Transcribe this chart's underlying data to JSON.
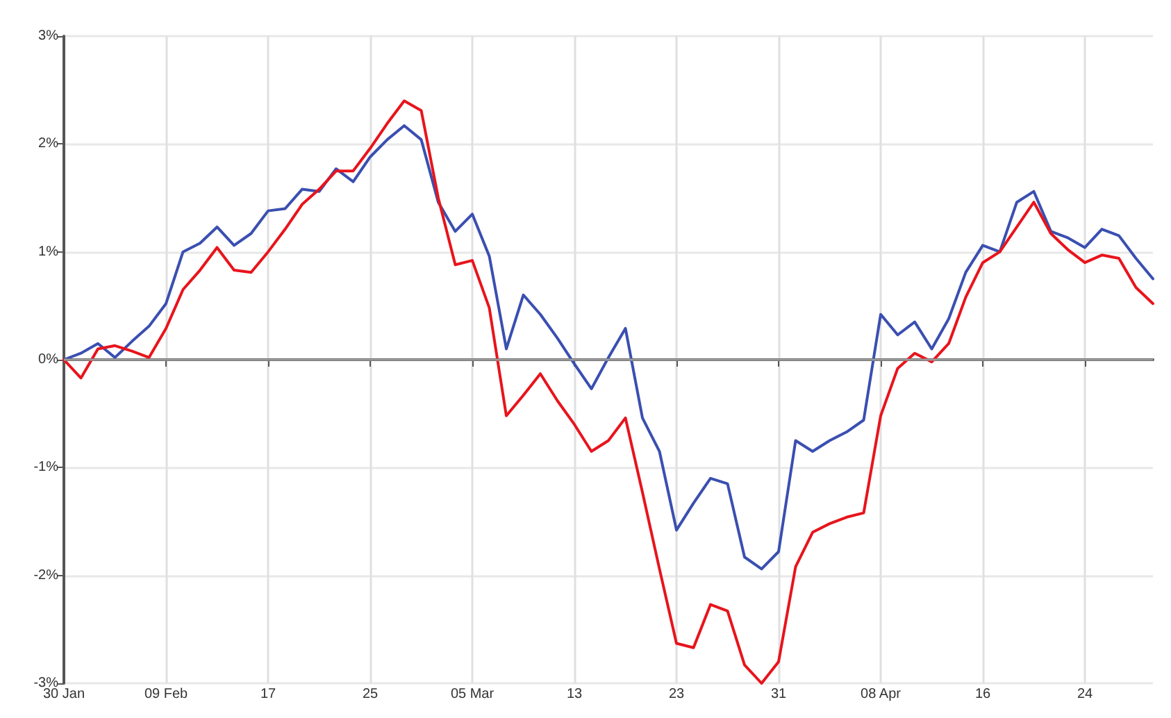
{
  "chart_data": {
    "type": "line",
    "categories": [
      "30 Jan",
      null,
      null,
      null,
      null,
      null,
      "09 Feb",
      null,
      null,
      null,
      null,
      null,
      "17",
      null,
      null,
      null,
      null,
      null,
      "25",
      null,
      null,
      null,
      null,
      null,
      "05 Mar",
      null,
      null,
      null,
      null,
      null,
      "13",
      null,
      null,
      null,
      null,
      null,
      "23",
      null,
      null,
      null,
      null,
      null,
      "31",
      null,
      null,
      null,
      null,
      null,
      "08 Apr",
      null,
      null,
      null,
      null,
      null,
      "16",
      null,
      null,
      null,
      null,
      null,
      "24",
      null,
      null,
      null,
      null
    ],
    "series": [
      {
        "color": "#3a4fb0",
        "values": [
          0,
          0.06,
          0.15,
          0.02,
          0.17,
          0.31,
          0.52,
          1.0,
          1.08,
          1.23,
          1.06,
          1.17,
          1.38,
          1.4,
          1.58,
          1.56,
          1.77,
          1.65,
          1.88,
          2.04,
          2.17,
          2.04,
          1.46,
          1.19,
          1.35,
          0.96,
          0.1,
          0.6,
          0.42,
          0.2,
          -0.04,
          -0.27,
          0.02,
          0.29,
          -0.54,
          -0.85,
          -1.58,
          -1.33,
          -1.1,
          -1.15,
          -1.83,
          -1.94,
          -1.78,
          -0.75,
          -0.85,
          -0.75,
          -0.67,
          -0.56,
          0.42,
          0.23,
          0.35,
          0.1,
          0.38,
          0.81,
          1.06,
          1.0,
          1.46,
          1.56,
          1.19,
          1.13,
          1.04,
          1.21,
          1.15,
          0.94,
          0.75
        ]
      },
      {
        "color": "#e8141c",
        "values": [
          0,
          -0.17,
          0.1,
          0.13,
          0.08,
          0.02,
          0.29,
          0.65,
          0.83,
          1.04,
          0.83,
          0.81,
          1.0,
          1.21,
          1.44,
          1.58,
          1.75,
          1.75,
          1.96,
          2.19,
          2.4,
          2.31,
          1.5,
          0.88,
          0.92,
          0.48,
          -0.52,
          -0.33,
          -0.13,
          -0.38,
          -0.6,
          -0.85,
          -0.75,
          -0.54,
          -1.23,
          -1.94,
          -2.63,
          -2.67,
          -2.27,
          -2.33,
          -2.83,
          -3.0,
          -2.8,
          -1.92,
          -1.6,
          -1.52,
          -1.46,
          -1.42,
          -0.52,
          -0.08,
          0.06,
          -0.02,
          0.15,
          0.58,
          0.9,
          1.0,
          1.23,
          1.46,
          1.17,
          1.02,
          0.9,
          0.97,
          0.94,
          0.67,
          0.52
        ]
      }
    ],
    "ylim": [
      -3,
      3
    ],
    "yticks": [
      {
        "value": -3,
        "label": "-3%"
      },
      {
        "value": -2,
        "label": "-2%"
      },
      {
        "value": -1,
        "label": "-1%"
      },
      {
        "value": 0,
        "label": "0%"
      },
      {
        "value": 1,
        "label": "1%"
      },
      {
        "value": 2,
        "label": "2%"
      },
      {
        "value": 3,
        "label": "3%"
      }
    ],
    "ref_lines": [
      {
        "axis": "y",
        "value": 0,
        "color": "#9a9a9a"
      }
    ],
    "grid": true,
    "marker": "none",
    "line_style": "solid"
  }
}
